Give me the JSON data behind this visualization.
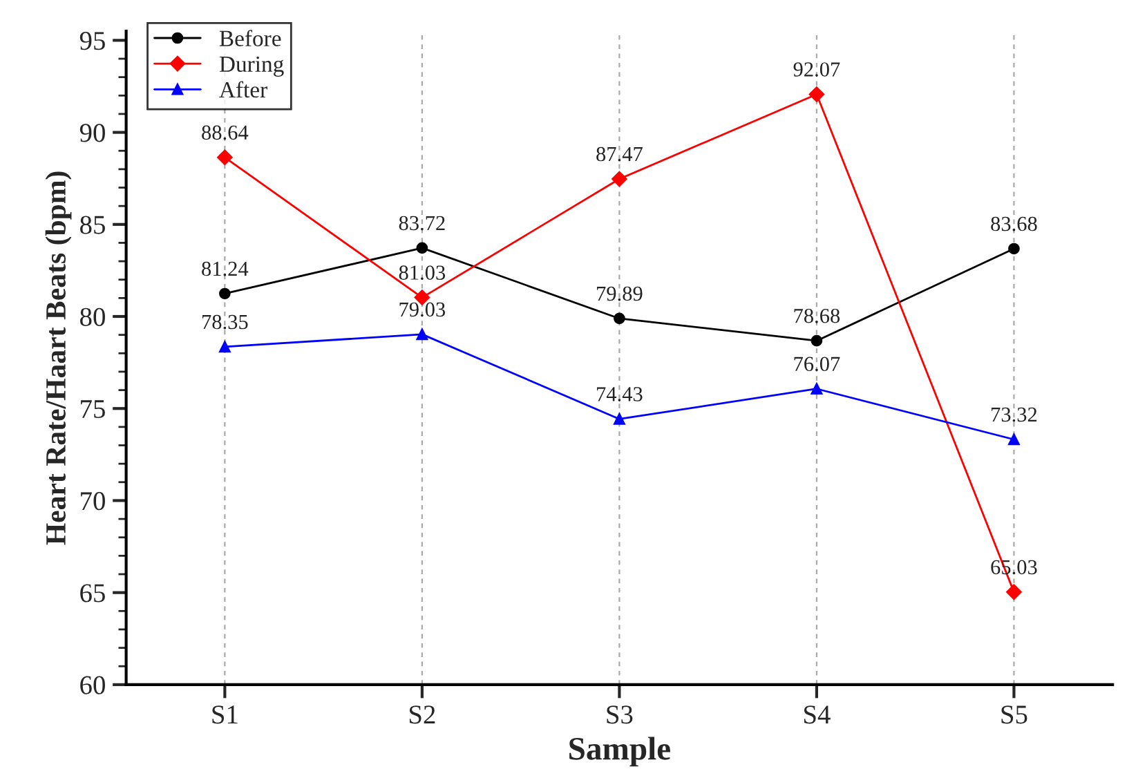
{
  "chart_data": {
    "type": "line",
    "xlabel": "Sample",
    "ylabel": "Heart Rate/Haart Beats (bpm)",
    "categories": [
      "S1",
      "S2",
      "S3",
      "S4",
      "S5"
    ],
    "series": [
      {
        "name": "Before",
        "color": "#000000",
        "marker": "circle",
        "values": [
          81.24,
          83.72,
          79.89,
          78.68,
          83.68
        ]
      },
      {
        "name": "During",
        "color": "#ff0000",
        "marker": "diamond",
        "values": [
          88.64,
          81.03,
          87.47,
          92.07,
          65.03
        ]
      },
      {
        "name": "After",
        "color": "#0000ff",
        "marker": "triangle",
        "values": [
          78.35,
          79.03,
          74.43,
          76.07,
          73.32
        ]
      }
    ],
    "ylim": [
      60,
      95.5
    ],
    "yticks": [
      60,
      65,
      70,
      75,
      80,
      85,
      90,
      95
    ],
    "grid": "x",
    "legend": "top left",
    "data_labels": true,
    "line_style": "solid"
  }
}
